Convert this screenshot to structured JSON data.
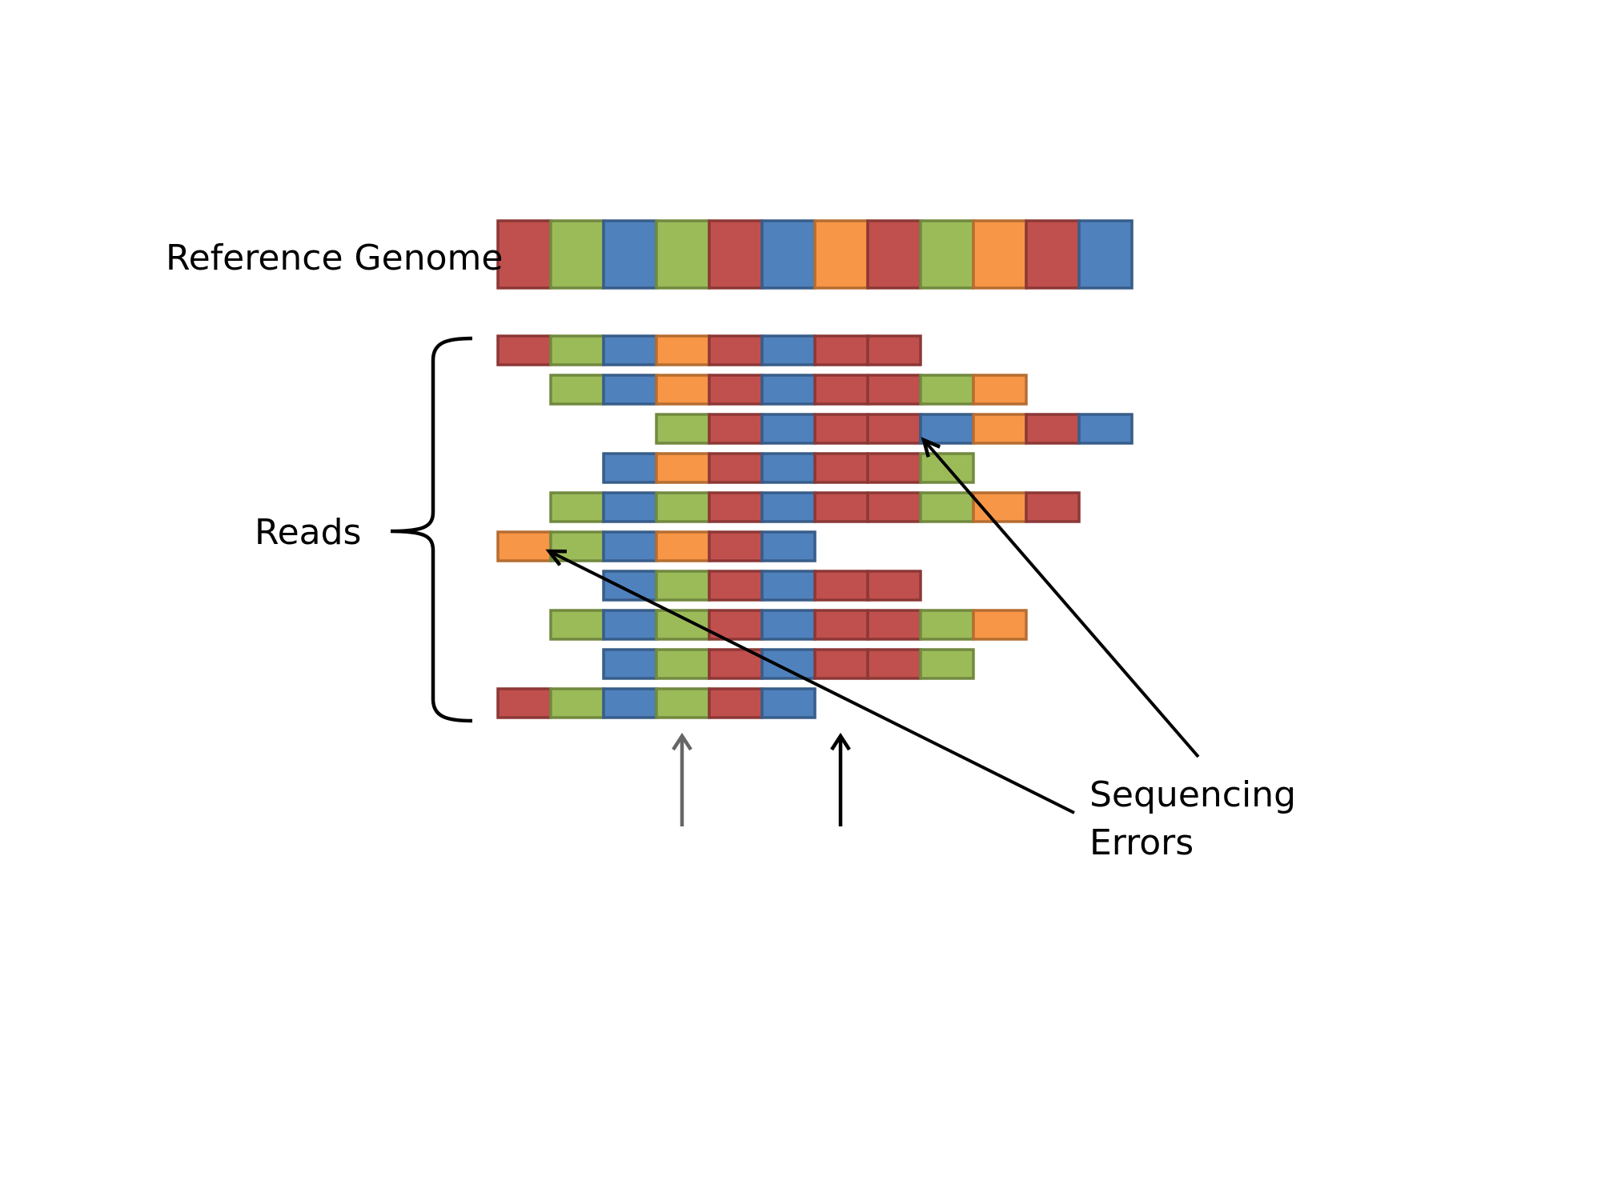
{
  "labels": {
    "reference": "Reference Genome",
    "reads": "Reads",
    "errors_line1": "Sequencing",
    "errors_line2": "Errors"
  },
  "colors": {
    "red": {
      "fill": "#c0504d",
      "stroke": "#8c3836"
    },
    "green": {
      "fill": "#9bbb59",
      "stroke": "#71893f"
    },
    "blue": {
      "fill": "#4f81bd",
      "stroke": "#385d8a"
    },
    "orange": {
      "fill": "#f79646",
      "stroke": "#b66d31"
    },
    "line": "#000000",
    "gray_arrow": "#666666"
  },
  "reference_genome": [
    "red",
    "green",
    "blue",
    "green",
    "red",
    "blue",
    "orange",
    "red",
    "green",
    "orange",
    "red",
    "blue"
  ],
  "reads": [
    {
      "start": 0,
      "bases": [
        "red",
        "green",
        "blue",
        "orange",
        "red",
        "blue",
        "red",
        "red"
      ]
    },
    {
      "start": 1,
      "bases": [
        "green",
        "blue",
        "orange",
        "red",
        "blue",
        "red",
        "red",
        "green",
        "orange"
      ]
    },
    {
      "start": 3,
      "bases": [
        "green",
        "red",
        "blue",
        "red",
        "red",
        "blue",
        "orange",
        "red",
        "blue"
      ]
    },
    {
      "start": 2,
      "bases": [
        "blue",
        "orange",
        "red",
        "blue",
        "red",
        "red",
        "green"
      ]
    },
    {
      "start": 1,
      "bases": [
        "green",
        "blue",
        "green",
        "red",
        "blue",
        "red",
        "red",
        "green",
        "orange",
        "red"
      ]
    },
    {
      "start": 0,
      "bases": [
        "orange",
        "green",
        "blue",
        "orange",
        "red",
        "blue"
      ]
    },
    {
      "start": 2,
      "bases": [
        "blue",
        "green",
        "red",
        "blue",
        "red",
        "red"
      ]
    },
    {
      "start": 1,
      "bases": [
        "green",
        "blue",
        "green",
        "red",
        "blue",
        "red",
        "red",
        "green",
        "orange"
      ]
    },
    {
      "start": 2,
      "bases": [
        "blue",
        "green",
        "red",
        "blue",
        "red",
        "red",
        "green"
      ]
    },
    {
      "start": 0,
      "bases": [
        "red",
        "green",
        "blue",
        "green",
        "red",
        "blue"
      ]
    }
  ],
  "sequencing_errors": [
    {
      "read": 2,
      "position": 8
    },
    {
      "read": 5,
      "position": 0
    }
  ],
  "position_markers": [
    {
      "position": 3,
      "color": "gray"
    },
    {
      "position": 6,
      "color": "black"
    }
  ]
}
